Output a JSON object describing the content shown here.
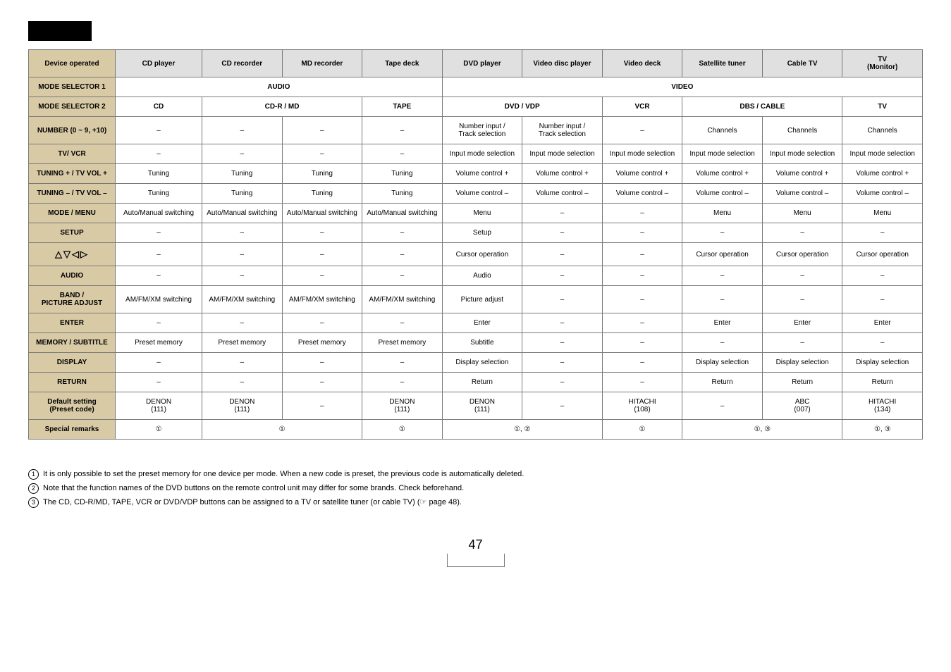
{
  "table": {
    "headers": {
      "device_operated": "Device operated",
      "cd_player": "CD player",
      "cd_recorder": "CD recorder",
      "md_recorder": "MD recorder",
      "tape_deck": "Tape deck",
      "dvd_player": "DVD player",
      "video_disc_player": "Video disc player",
      "video_deck": "Video deck",
      "satellite_tuner": "Satellite tuner",
      "cable_tv": "Cable TV",
      "tv_monitor_l1": "TV",
      "tv_monitor_l2": "(Monitor)"
    },
    "mode_selector_1": {
      "label": "MODE SELECTOR 1",
      "audio": "AUDIO",
      "video": "VIDEO"
    },
    "mode_selector_2": {
      "label": "MODE SELECTOR 2",
      "cd": "CD",
      "cdr_md": "CD-R / MD",
      "tape": "TAPE",
      "dvd_vdp": "DVD / VDP",
      "vcr": "VCR",
      "dbs_cable": "DBS / CABLE",
      "tv": "TV"
    },
    "rows": {
      "number": {
        "label": "NUMBER (0 ~ 9, +10)",
        "c": [
          "–",
          "–",
          "–",
          "–",
          "Number input /\nTrack selection",
          "Number input /\nTrack selection",
          "–",
          "Channels",
          "Channels",
          "Channels"
        ]
      },
      "tv_vcr": {
        "label": "TV/ VCR",
        "c": [
          "–",
          "–",
          "–",
          "–",
          "Input mode selection",
          "Input mode selection",
          "Input mode selection",
          "Input mode selection",
          "Input mode selection",
          "Input mode selection"
        ]
      },
      "tun_plus": {
        "label": "TUNING + / TV VOL +",
        "c": [
          "Tuning",
          "Tuning",
          "Tuning",
          "Tuning",
          "Volume control +",
          "Volume control +",
          "Volume control +",
          "Volume control +",
          "Volume control +",
          "Volume control +"
        ]
      },
      "tun_minus": {
        "label": "TUNING – / TV VOL –",
        "c": [
          "Tuning",
          "Tuning",
          "Tuning",
          "Tuning",
          "Volume control –",
          "Volume control –",
          "Volume control –",
          "Volume control –",
          "Volume control –",
          "Volume control –"
        ]
      },
      "mode": {
        "label": "MODE / MENU",
        "c": [
          "Auto/Manual switching",
          "Auto/Manual switching",
          "Auto/Manual switching",
          "Auto/Manual switching",
          "Menu",
          "–",
          "–",
          "Menu",
          "Menu",
          "Menu"
        ]
      },
      "setup": {
        "label": "SETUP",
        "c": [
          "–",
          "–",
          "–",
          "–",
          "Setup",
          "–",
          "–",
          "–",
          "–",
          "–"
        ]
      },
      "arrows": {
        "c": [
          "–",
          "–",
          "–",
          "–",
          "Cursor operation",
          "–",
          "–",
          "Cursor operation",
          "Cursor operation",
          "Cursor operation"
        ]
      },
      "audio": {
        "label": "AUDIO",
        "c": [
          "–",
          "–",
          "–",
          "–",
          "Audio",
          "–",
          "–",
          "–",
          "–",
          "–"
        ]
      },
      "band": {
        "label_l1": "BAND /",
        "label_l2": "PICTURE ADJUST",
        "c": [
          "AM/FM/XM switching",
          "AM/FM/XM switching",
          "AM/FM/XM switching",
          "AM/FM/XM switching",
          "Picture adjust",
          "–",
          "–",
          "–",
          "–",
          "–"
        ]
      },
      "enter": {
        "label": "ENTER",
        "c": [
          "–",
          "–",
          "–",
          "–",
          "Enter",
          "–",
          "–",
          "Enter",
          "Enter",
          "Enter"
        ]
      },
      "memory": {
        "label": "MEMORY / SUBTITLE",
        "c": [
          "Preset memory",
          "Preset memory",
          "Preset memory",
          "Preset memory",
          "Subtitle",
          "–",
          "–",
          "–",
          "–",
          "–"
        ]
      },
      "display": {
        "label": "DISPLAY",
        "c": [
          "–",
          "–",
          "–",
          "–",
          "Display selection",
          "–",
          "–",
          "Display selection",
          "Display selection",
          "Display selection"
        ]
      },
      "return": {
        "label": "RETURN",
        "c": [
          "–",
          "–",
          "–",
          "–",
          "Return",
          "–",
          "–",
          "Return",
          "Return",
          "Return"
        ]
      },
      "default": {
        "label_l1": "Default setting",
        "label_l2": "(Preset code)",
        "c": [
          "DENON\n(111)",
          "DENON\n(111)",
          "–",
          "DENON\n(111)",
          "DENON\n(111)",
          "–",
          "HITACHI\n(108)",
          "–",
          "ABC\n(007)",
          "HITACHI\n(134)"
        ]
      },
      "special": {
        "label": "Special remarks"
      }
    },
    "special": {
      "one": "①",
      "one_two": "①, ②",
      "one_three": "①, ③"
    }
  },
  "notes": {
    "n1": "It is only possible to set the preset memory for one device per mode. When a new code is preset, the previous code is automatically deleted.",
    "n2": "Note that the function names of the DVD buttons on the remote control unit may differ for some brands. Check beforehand.",
    "n3_a": "The CD, CD-R/MD, TAPE, VCR or DVD/VDP buttons can be assigned to a TV or satellite tuner (or cable TV) (",
    "n3_b": " page 48)."
  },
  "page_number": "47",
  "arrows_glyphs": "△▽◁▷",
  "footnote_icon": "☞"
}
